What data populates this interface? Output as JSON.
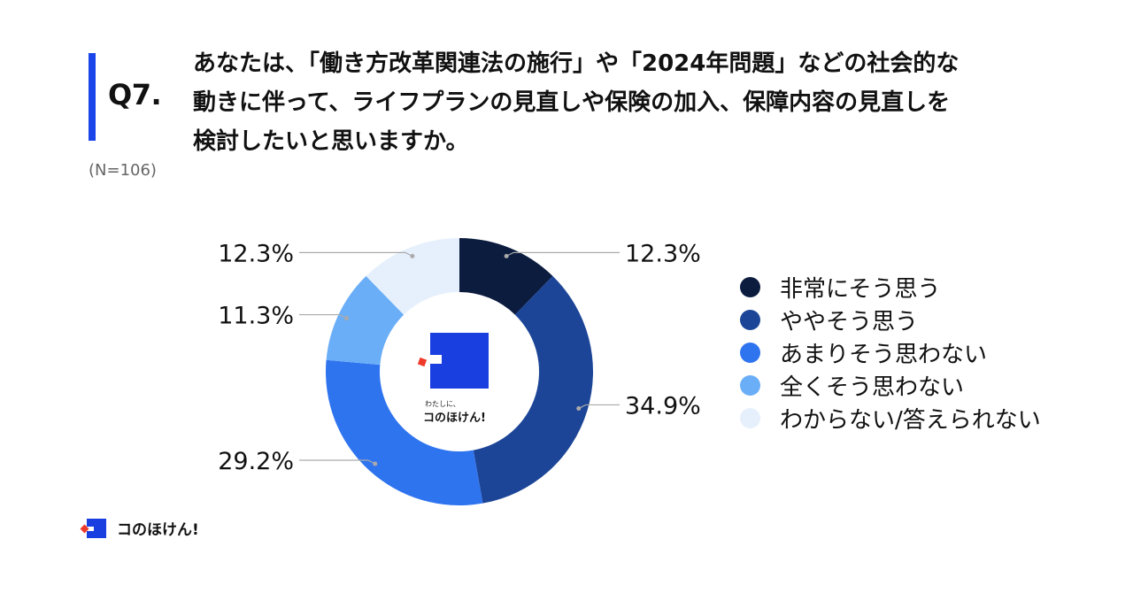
{
  "header": {
    "question_number": "Q7.",
    "question_lines": [
      "あなたは、「働き方改革関連法の施行」や「2024年問題」などの社会的な",
      "動きに伴って、ライフプランの見直しや保険の加入、保障内容の見直しを",
      "検討したいと思いますか。"
    ],
    "sample_size": "(N=106)",
    "accent_color": "#1a45e8"
  },
  "chart_data": {
    "type": "pie",
    "donut": true,
    "categories": [
      "非常にそう思う",
      "ややそう思う",
      "あまりそう思わない",
      "全くそう思わない",
      "わからない/答えられない"
    ],
    "values": [
      12.3,
      34.9,
      29.2,
      11.3,
      12.3
    ],
    "value_labels": [
      "12.3%",
      "34.9%",
      "29.2%",
      "11.3%",
      "12.3%"
    ],
    "colors": [
      "#0b1c3f",
      "#1c4597",
      "#2f74ef",
      "#6aaef8",
      "#e6f0fc"
    ],
    "legend_position": "right"
  },
  "center_logo": {
    "small_text": "わたしに、",
    "brand_text": "コのほけん!"
  },
  "footer": {
    "brand_text": "コのほけん!"
  }
}
